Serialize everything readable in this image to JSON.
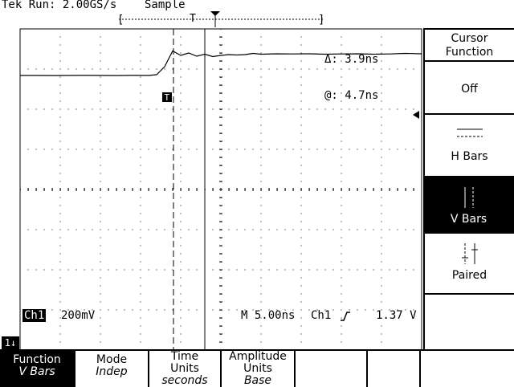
{
  "header": {
    "status": "Tek Run: 2.00GS/s",
    "mode": "Sample"
  },
  "cursor_readout": {
    "delta": "Δ: 3.9ns",
    "at": "@: 4.7ns"
  },
  "side_menu": {
    "title_line1": "Cursor",
    "title_line2": "Function",
    "items": [
      {
        "label": "Off"
      },
      {
        "label": "H Bars"
      },
      {
        "label": "V Bars"
      },
      {
        "label": "Paired"
      }
    ]
  },
  "readout": {
    "channel": "Ch1",
    "volts_div": "200mV",
    "timebase": "M 5.00ns",
    "trig_source": "Ch1",
    "trig_level": "1.37 V"
  },
  "channel_marker": "1",
  "bottom_menu": {
    "function": {
      "label": "Function",
      "value": "V Bars"
    },
    "mode": {
      "label": "Mode",
      "value": "Indep"
    },
    "time_units": {
      "label": "Time Units",
      "value": "seconds"
    },
    "amp_units": {
      "label": "Amplitude Units",
      "value": "Base"
    }
  },
  "trigger_marker": "T",
  "chart_data": {
    "type": "line",
    "x_label": "",
    "y_label": "",
    "grid": true,
    "series": [
      {
        "x": [
          0,
          2,
          4,
          6,
          8,
          10,
          12,
          14,
          16,
          17,
          18,
          19,
          20,
          21,
          22,
          23,
          24,
          25,
          26,
          27,
          28,
          29,
          30,
          32,
          34,
          36,
          38,
          40,
          42,
          44,
          46,
          48,
          50
        ],
        "y": [
          -0.8,
          -0.8,
          -0.81,
          -0.8,
          -0.79,
          -0.8,
          -0.81,
          -0.79,
          -0.8,
          -0.7,
          0.3,
          2.25,
          1.7,
          2.0,
          1.6,
          1.85,
          1.55,
          1.7,
          1.8,
          1.75,
          1.8,
          1.95,
          1.85,
          1.9,
          1.88,
          1.9,
          1.85,
          1.88,
          1.9,
          1.85,
          1.88,
          1.95,
          1.9
        ]
      }
    ]
  }
}
